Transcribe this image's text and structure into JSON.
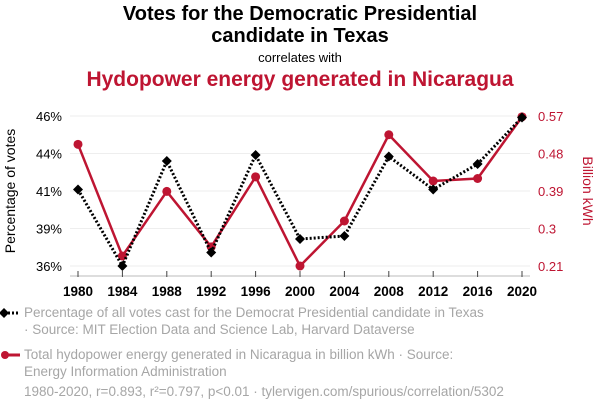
{
  "header": {
    "title_line1": "Votes for the Democratic Presidential",
    "title_line2": "candidate in Texas",
    "subtitle": "correlates with",
    "title2": "Hydopower energy generated in Nicaragua"
  },
  "colors": {
    "series1": "#000000",
    "series2": "#be1532",
    "grid": "#eeeeee",
    "muted_text": "#a6a6a6"
  },
  "chart_data": {
    "type": "line",
    "x": [
      1980,
      1984,
      1988,
      1992,
      1996,
      2000,
      2004,
      2008,
      2012,
      2016,
      2020
    ],
    "x_tick_labels": [
      "1980",
      "1984",
      "1988",
      "1992",
      "1996",
      "2000",
      "2004",
      "2008",
      "2012",
      "2016",
      "2020"
    ],
    "series": [
      {
        "name": "Percentage of all votes cast for the Democrat Presidential candidate in Texas",
        "axis": "left",
        "style": "dotted-diamond",
        "values": [
          41.1,
          36.0,
          43.0,
          36.9,
          43.4,
          37.8,
          38.0,
          43.3,
          41.1,
          42.8,
          45.9
        ]
      },
      {
        "name": "Total hydopower energy generated in Nicaragua in billion kWh",
        "axis": "right",
        "style": "solid-circle",
        "values": [
          0.502,
          0.234,
          0.389,
          0.256,
          0.424,
          0.21,
          0.318,
          0.525,
          0.414,
          0.42,
          0.568
        ]
      }
    ],
    "y_left": {
      "label": "Percentage of votes",
      "range": [
        36.0,
        46.0
      ],
      "ticks": [
        46.0,
        43.5,
        41.0,
        38.5,
        36.0
      ],
      "tick_labels": [
        "46%",
        "44%",
        "41%",
        "39%",
        "36%"
      ]
    },
    "y_right": {
      "label": "Billion kWh",
      "range": [
        0.21,
        0.57
      ],
      "ticks": [
        0.57,
        0.48,
        0.39,
        0.3,
        0.21
      ],
      "tick_labels": [
        "0.57",
        "0.48",
        "0.39",
        "0.3",
        "0.21"
      ]
    },
    "grid": true,
    "legend_position": "bottom-left"
  },
  "legend": [
    {
      "line1": "Percentage of all votes cast for the Democrat Presidential candidate in Texas",
      "line2": "· Source: MIT Election Data and Science Lab, Harvard Dataverse"
    },
    {
      "line1": "Total hydopower energy generated in Nicaragua in billion kWh · Source:",
      "line2": "Energy Information Administration"
    }
  ],
  "footer": "1980-2020, r=0.893, r²=0.797, p<0.01 · tylervigen.com/spurious/correlation/5302"
}
